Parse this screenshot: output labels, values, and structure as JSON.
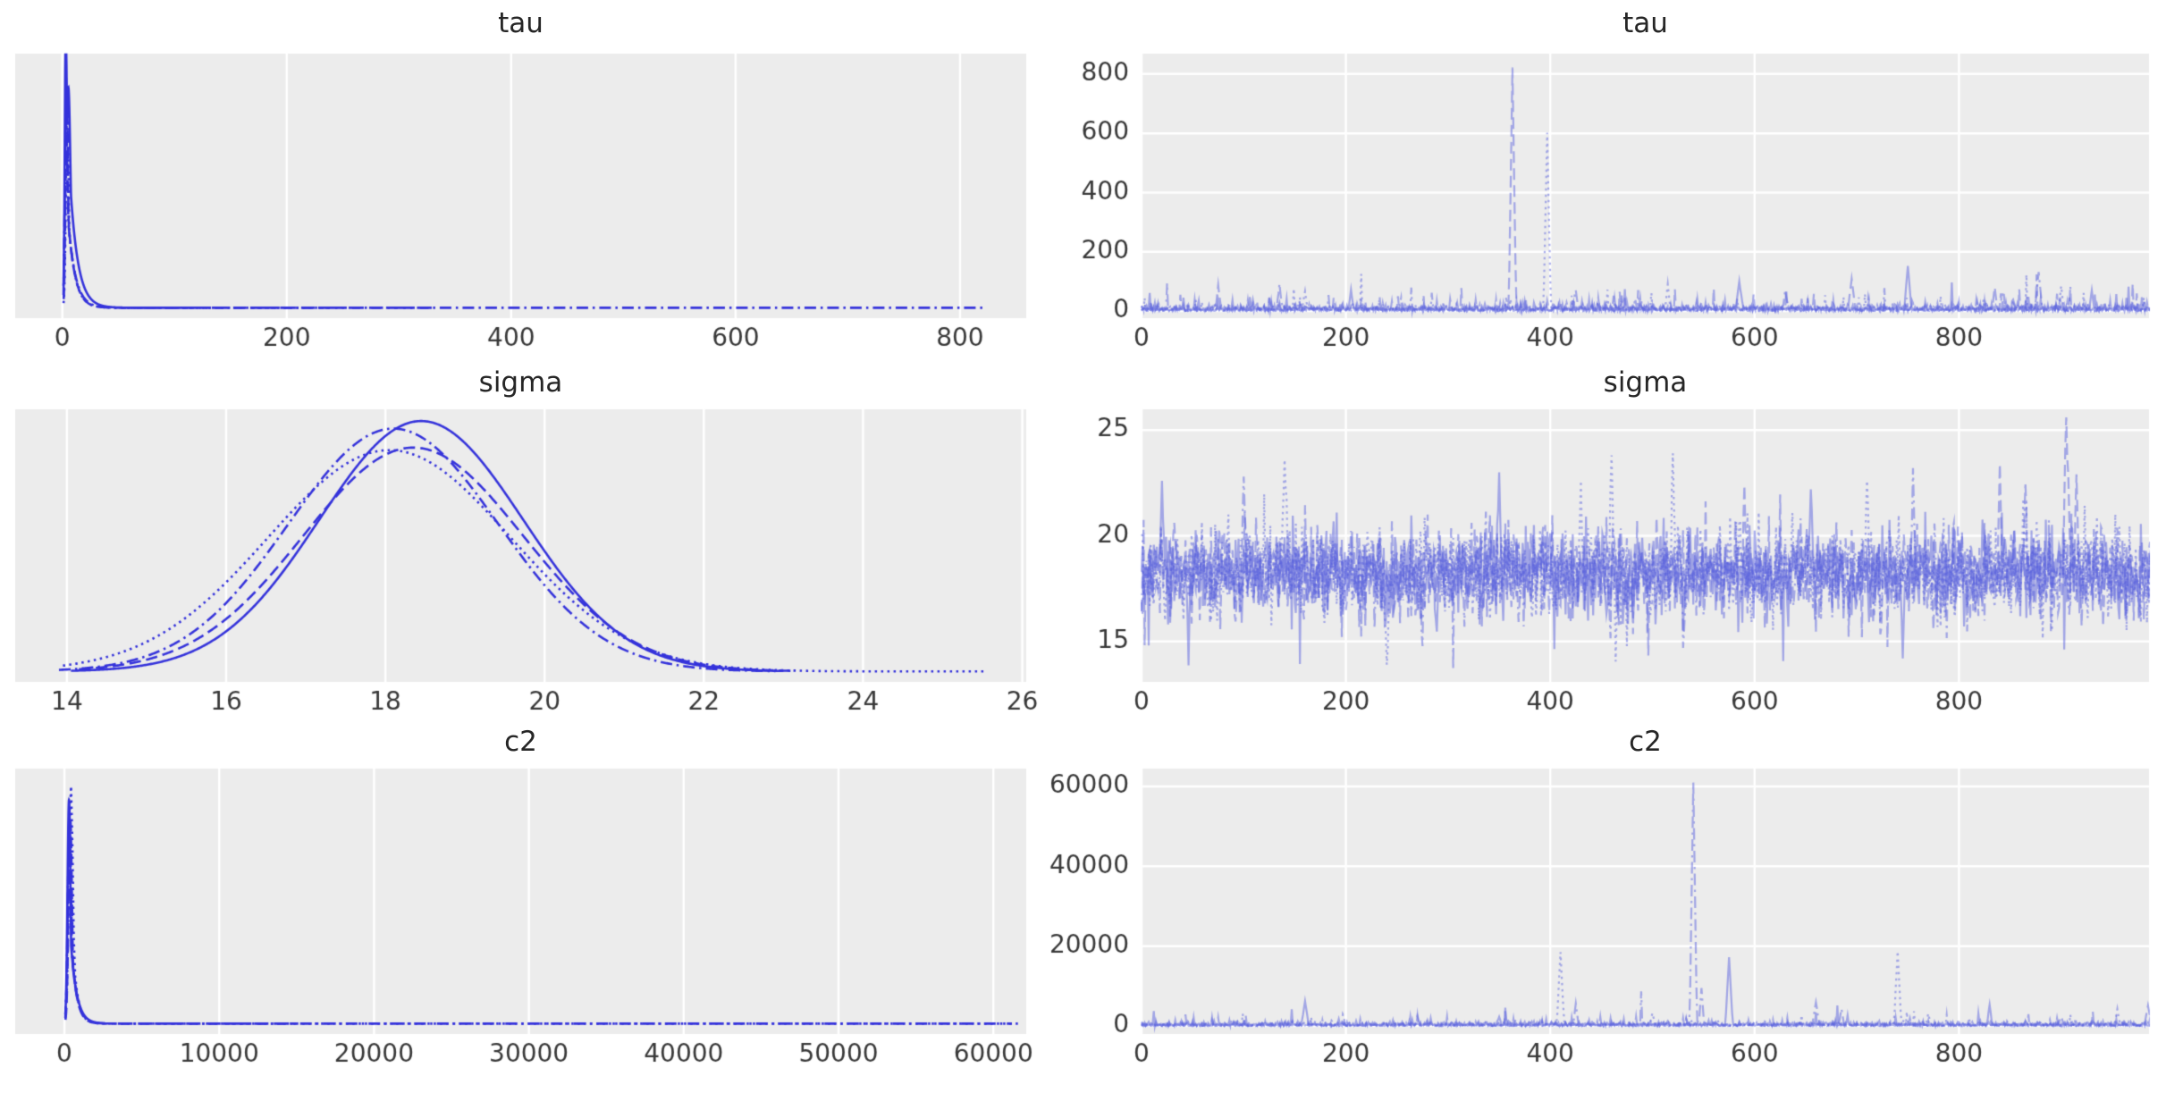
{
  "figure": {
    "kind": "mcmc-trace-plot-grid",
    "background": "#ffffff",
    "panel_bg": "#ececec",
    "grid_color": "#ffffff",
    "kde_color": "#3533db",
    "trace_color": "#575fdd",
    "trace_alpha": 0.5,
    "tick_color": "#383838",
    "title_color": "#262626",
    "row_variables": [
      "tau",
      "sigma",
      "c2"
    ],
    "columns": [
      "posterior density (KDE)",
      "sample trace"
    ]
  },
  "chart_data": [
    {
      "id": "tau-density",
      "title": "tau",
      "type": "line",
      "panel": "density",
      "xlim": [
        -42,
        859
      ],
      "xticks": [
        0,
        200,
        400,
        600,
        800
      ],
      "yticks": [],
      "legend": "none",
      "grid": "vertical-only",
      "chains": [
        {
          "style": "solid",
          "components": [
            {
              "mu": 3.0,
              "sigma": 0.9,
              "h": 1.0
            },
            {
              "mu": 5.6,
              "sigma": 1.5,
              "h": 0.55
            }
          ],
          "decay": 7.0,
          "baseline": 0.006,
          "xmin": 1.0,
          "xmax": 112
        },
        {
          "style": "dashed",
          "components": [
            {
              "mu": 4.0,
              "sigma": 1.1,
              "h": 0.9
            }
          ],
          "decay": 6.0,
          "baseline": 0.006,
          "xmin": 1.2,
          "xmax": 330
        },
        {
          "style": "dashdot",
          "components": [
            {
              "mu": 3.4,
              "sigma": 1.0,
              "h": 0.94
            }
          ],
          "decay": 6.5,
          "baseline": 0.006,
          "xmin": 1.0,
          "xmax": 822
        },
        {
          "style": "dotted",
          "components": [
            {
              "mu": 4.4,
              "sigma": 1.2,
              "h": 0.84
            }
          ],
          "decay": 6.0,
          "baseline": 0.006,
          "xmin": 1.1,
          "xmax": 240
        }
      ]
    },
    {
      "id": "tau-trace",
      "title": "tau",
      "type": "line",
      "panel": "trace",
      "xlim": [
        0,
        986
      ],
      "xticks": [
        0,
        200,
        400,
        600,
        800
      ],
      "ylim": [
        -24,
        869
      ],
      "yticks": [
        0,
        200,
        400,
        600,
        800
      ],
      "n_samples": 990,
      "grid": "both",
      "noise": {
        "dist": "halfnormal",
        "scale": 9,
        "burst_prob": 0.08,
        "burst_mult": 3.2,
        "rare_prob": 0.012,
        "rare_mult": 7
      },
      "chains": [
        {
          "style": "solid",
          "seed": 101,
          "spikes": [
            {
              "x": 750,
              "v": 152,
              "w": 3
            },
            {
              "x": 585,
              "v": 100,
              "w": 3
            },
            {
              "x": 205,
              "v": 72,
              "w": 2
            },
            {
              "x": 930,
              "v": 70,
              "w": 2
            }
          ]
        },
        {
          "style": "dashed",
          "seed": 202,
          "spikes": [
            {
              "x": 363,
              "v": 822,
              "w": 3
            },
            {
              "x": 695,
              "v": 108,
              "w": 3
            },
            {
              "x": 75,
              "v": 88,
              "w": 2
            },
            {
              "x": 835,
              "v": 80,
              "w": 2
            }
          ]
        },
        {
          "style": "dashdot",
          "seed": 303,
          "spikes": [
            {
              "x": 135,
              "v": 92,
              "w": 2
            },
            {
              "x": 878,
              "v": 132,
              "w": 3
            },
            {
              "x": 425,
              "v": 70,
              "w": 2
            },
            {
              "x": 630,
              "v": 72,
              "w": 2
            }
          ]
        },
        {
          "style": "dotted",
          "seed": 404,
          "spikes": [
            {
              "x": 397,
              "v": 602,
              "w": 3
            },
            {
              "x": 515,
              "v": 90,
              "w": 2
            },
            {
              "x": 900,
              "v": 84,
              "w": 2
            },
            {
              "x": 160,
              "v": 66,
              "w": 2
            }
          ]
        }
      ]
    },
    {
      "id": "sigma-density",
      "title": "sigma",
      "type": "line",
      "panel": "density",
      "xlim": [
        13.35,
        26.05
      ],
      "xticks": [
        14,
        16,
        18,
        20,
        22,
        24,
        26
      ],
      "yticks": [],
      "legend": "none",
      "grid": "vertical-only",
      "chains": [
        {
          "style": "solid",
          "bell": {
            "mean": 18.45,
            "sd": 1.28,
            "peak": 0.99
          },
          "baseline": 0.006,
          "xmin": 14.05,
          "xmax": 23.0
        },
        {
          "style": "dashed",
          "bell": {
            "mean": 18.35,
            "sd": 1.38,
            "peak": 0.885
          },
          "baseline": 0.006,
          "xmin": 14.15,
          "xmax": 23.1
        },
        {
          "style": "dashdot",
          "bell": {
            "mean": 18.1,
            "sd": 1.32,
            "peak": 0.96
          },
          "baseline": 0.006,
          "xmin": 13.9,
          "xmax": 22.9
        },
        {
          "style": "dotted",
          "bell": {
            "mean": 18.05,
            "sd": 1.52,
            "peak": 0.875
          },
          "baseline": 0.006,
          "xmin": 13.95,
          "xmax": 25.55
        }
      ]
    },
    {
      "id": "sigma-trace",
      "title": "sigma",
      "type": "line",
      "panel": "trace",
      "xlim": [
        0,
        986
      ],
      "xticks": [
        0,
        200,
        400,
        600,
        800
      ],
      "ylim": [
        13.09,
        25.98
      ],
      "yticks": [
        15,
        20,
        25
      ],
      "n_samples": 990,
      "grid": "both",
      "noise": {
        "dist": "normal",
        "mean": 18.25,
        "sd": 1.05,
        "burst_prob": 0.06,
        "burst_mult": 1.7
      },
      "chains": [
        {
          "style": "solid",
          "seed": 111,
          "spikes": [
            {
              "x": 350,
              "v": 23.0,
              "w": 2
            },
            {
              "x": 655,
              "v": 22.2,
              "w": 2
            },
            {
              "x": 745,
              "v": 14.2,
              "w": 2
            },
            {
              "x": 20,
              "v": 22.6,
              "w": 2
            }
          ]
        },
        {
          "style": "dashed",
          "seed": 222,
          "spikes": [
            {
              "x": 905,
              "v": 25.6,
              "w": 3
            },
            {
              "x": 915,
              "v": 22.9,
              "w": 2
            },
            {
              "x": 840,
              "v": 23.4,
              "w": 2
            },
            {
              "x": 590,
              "v": 22.4,
              "w": 2
            }
          ]
        },
        {
          "style": "dashdot",
          "seed": 333,
          "spikes": [
            {
              "x": 530,
              "v": 14.7,
              "w": 2
            },
            {
              "x": 755,
              "v": 23.2,
              "w": 2
            },
            {
              "x": 865,
              "v": 22.5,
              "w": 2
            },
            {
              "x": 100,
              "v": 22.8,
              "w": 2
            }
          ]
        },
        {
          "style": "dotted",
          "seed": 444,
          "spikes": [
            {
              "x": 140,
              "v": 23.6,
              "w": 3
            },
            {
              "x": 240,
              "v": 13.9,
              "w": 3
            },
            {
              "x": 460,
              "v": 23.8,
              "w": 2
            },
            {
              "x": 520,
              "v": 23.9,
              "w": 2
            },
            {
              "x": 710,
              "v": 22.6,
              "w": 2
            },
            {
              "x": 430,
              "v": 22.6,
              "w": 2
            }
          ]
        }
      ]
    },
    {
      "id": "c2-density",
      "title": "c2",
      "type": "line",
      "panel": "density",
      "xlim": [
        -3176,
        62125
      ],
      "xticks": [
        0,
        10000,
        20000,
        30000,
        40000,
        50000,
        60000
      ],
      "yticks": [],
      "legend": "none",
      "grid": "vertical-only",
      "chains": [
        {
          "style": "solid",
          "components": [
            {
              "mu": 300,
              "sigma": 95,
              "h": 0.91
            }
          ],
          "decay": 380,
          "baseline": 0.006,
          "xmin": 60,
          "xmax": 2600
        },
        {
          "style": "dashed",
          "components": [
            {
              "mu": 380,
              "sigma": 110,
              "h": 0.84
            }
          ],
          "decay": 320,
          "baseline": 0.006,
          "xmin": 70,
          "xmax": 15000
        },
        {
          "style": "dashdot",
          "components": [
            {
              "mu": 330,
              "sigma": 100,
              "h": 0.88
            }
          ],
          "decay": 350,
          "baseline": 0.006,
          "xmin": 60,
          "xmax": 61200
        },
        {
          "style": "dotted",
          "components": [
            {
              "mu": 420,
              "sigma": 130,
              "h": 0.97
            }
          ],
          "decay": 300,
          "baseline": 0.006,
          "xmin": 80,
          "xmax": 61600
        }
      ]
    },
    {
      "id": "c2-trace",
      "title": "c2",
      "type": "line",
      "panel": "trace",
      "xlim": [
        0,
        986
      ],
      "xticks": [
        0,
        200,
        400,
        600,
        800
      ],
      "ylim": [
        -2015,
        64478
      ],
      "yticks": [
        0,
        20000,
        40000,
        60000
      ],
      "n_samples": 990,
      "grid": "both",
      "noise": {
        "dist": "halfnormal",
        "scale": 420,
        "burst_prob": 0.05,
        "burst_mult": 3.0,
        "rare_prob": 0.008,
        "rare_mult": 6
      },
      "chains": [
        {
          "style": "solid",
          "seed": 121,
          "spikes": [
            {
              "x": 160,
              "v": 6200,
              "w": 3
            },
            {
              "x": 575,
              "v": 17200,
              "w": 3
            },
            {
              "x": 830,
              "v": 5300,
              "w": 2
            },
            {
              "x": 350,
              "v": 2300,
              "w": 2
            }
          ]
        },
        {
          "style": "dashed",
          "seed": 232,
          "spikes": [
            {
              "x": 985,
              "v": 5100,
              "w": 3
            },
            {
              "x": 900,
              "v": 2400,
              "w": 2
            },
            {
              "x": 270,
              "v": 2500,
              "w": 2
            }
          ]
        },
        {
          "style": "dashdot",
          "seed": 343,
          "spikes": [
            {
              "x": 540,
              "v": 61000,
              "w": 3
            },
            {
              "x": 548,
              "v": 9500,
              "w": 2
            },
            {
              "x": 425,
              "v": 5600,
              "w": 2
            },
            {
              "x": 660,
              "v": 5900,
              "w": 3
            },
            {
              "x": 685,
              "v": 4300,
              "w": 2
            }
          ]
        },
        {
          "style": "dotted",
          "seed": 454,
          "spikes": [
            {
              "x": 410,
              "v": 18500,
              "w": 3
            },
            {
              "x": 740,
              "v": 18700,
              "w": 3
            },
            {
              "x": 955,
              "v": 4200,
              "w": 2
            },
            {
              "x": 500,
              "v": 3200,
              "w": 2
            },
            {
              "x": 770,
              "v": 3100,
              "w": 2
            }
          ]
        }
      ]
    }
  ]
}
